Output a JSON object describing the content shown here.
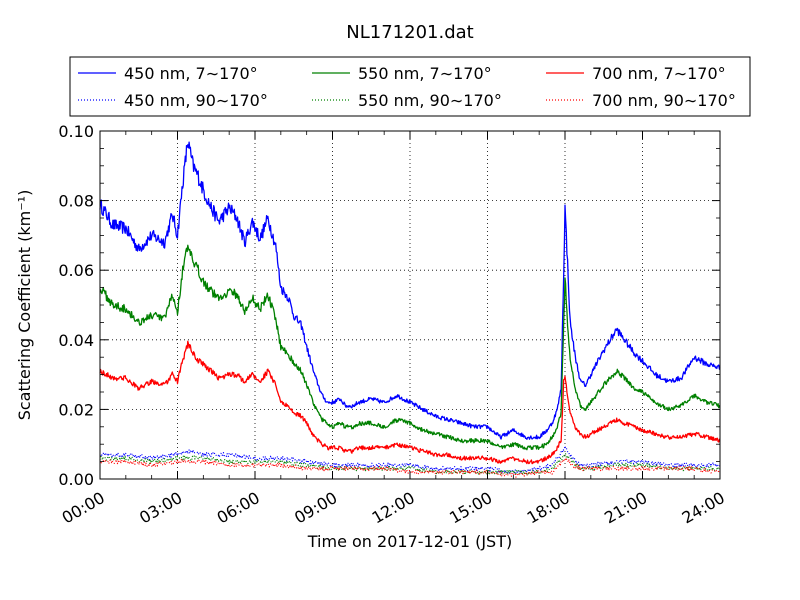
{
  "chart_data": {
    "type": "line",
    "title": "NL171201.dat",
    "xlabel": "Time on 2017-12-01 (JST)",
    "ylabel": "Scattering Coefficient (km⁻¹)",
    "xlim": [
      0,
      24
    ],
    "ylim": [
      0,
      0.1
    ],
    "x_tick_labels": [
      "00:00",
      "03:00",
      "06:00",
      "09:00",
      "12:00",
      "15:00",
      "18:00",
      "21:00",
      "24:00"
    ],
    "y_tick_labels": [
      "0.00",
      "0.02",
      "0.04",
      "0.06",
      "0.08",
      "0.10"
    ],
    "grid": true,
    "legend_placement": "top (above plot, 3 columns)",
    "x_unit": "hours",
    "series": [
      {
        "name": "450 nm, 7∼170°",
        "color": "#0000ff",
        "style": "solid",
        "x": [
          0,
          0.5,
          1,
          1.5,
          2,
          2.5,
          2.8,
          3,
          3.2,
          3.4,
          3.6,
          3.8,
          4,
          4.3,
          4.6,
          5,
          5.3,
          5.6,
          5.9,
          6.2,
          6.5,
          6.8,
          7,
          7.3,
          7.5,
          7.8,
          8,
          8.3,
          8.6,
          8.8,
          9,
          9.3,
          9.5,
          9.8,
          10,
          10.5,
          11,
          11.5,
          12,
          12.5,
          13,
          13.5,
          14,
          14.5,
          15,
          15.5,
          16,
          16.5,
          17,
          17.3,
          17.5,
          17.7,
          17.85,
          17.95,
          18,
          18.1,
          18.2,
          18.4,
          18.6,
          18.8,
          19,
          19.5,
          20,
          20.3,
          20.7,
          21,
          21.5,
          22,
          22.5,
          23,
          23.5,
          24
        ],
        "y": [
          0.079,
          0.073,
          0.072,
          0.066,
          0.07,
          0.068,
          0.076,
          0.07,
          0.085,
          0.097,
          0.09,
          0.087,
          0.083,
          0.078,
          0.074,
          0.078,
          0.075,
          0.068,
          0.074,
          0.069,
          0.075,
          0.067,
          0.055,
          0.052,
          0.047,
          0.044,
          0.038,
          0.03,
          0.024,
          0.022,
          0.022,
          0.023,
          0.021,
          0.021,
          0.022,
          0.023,
          0.022,
          0.024,
          0.022,
          0.02,
          0.018,
          0.017,
          0.016,
          0.015,
          0.015,
          0.012,
          0.014,
          0.012,
          0.012,
          0.014,
          0.016,
          0.02,
          0.026,
          0.06,
          0.078,
          0.062,
          0.045,
          0.035,
          0.028,
          0.027,
          0.03,
          0.037,
          0.043,
          0.04,
          0.036,
          0.034,
          0.03,
          0.028,
          0.029,
          0.035,
          0.033,
          0.032
        ]
      },
      {
        "name": "550 nm, 7∼170°",
        "color": "#008000",
        "style": "solid",
        "x": [
          0,
          0.5,
          1,
          1.5,
          2,
          2.5,
          2.8,
          3,
          3.2,
          3.4,
          3.6,
          3.8,
          4,
          4.3,
          4.6,
          5,
          5.3,
          5.6,
          5.9,
          6.2,
          6.5,
          6.8,
          7,
          7.3,
          7.5,
          7.8,
          8,
          8.3,
          8.6,
          8.8,
          9,
          9.3,
          9.5,
          9.8,
          10,
          10.5,
          11,
          11.5,
          12,
          12.5,
          13,
          13.5,
          14,
          14.5,
          15,
          15.5,
          16,
          16.5,
          17,
          17.3,
          17.5,
          17.7,
          17.85,
          17.95,
          18,
          18.1,
          18.2,
          18.4,
          18.6,
          18.8,
          19,
          19.5,
          20,
          20.3,
          20.7,
          21,
          21.5,
          22,
          22.5,
          23,
          23.5,
          24
        ],
        "y": [
          0.055,
          0.05,
          0.049,
          0.045,
          0.047,
          0.046,
          0.053,
          0.048,
          0.06,
          0.067,
          0.062,
          0.06,
          0.057,
          0.054,
          0.052,
          0.054,
          0.053,
          0.048,
          0.052,
          0.049,
          0.053,
          0.046,
          0.038,
          0.036,
          0.033,
          0.031,
          0.027,
          0.021,
          0.017,
          0.016,
          0.015,
          0.016,
          0.015,
          0.015,
          0.016,
          0.016,
          0.015,
          0.017,
          0.016,
          0.014,
          0.013,
          0.012,
          0.011,
          0.011,
          0.011,
          0.009,
          0.01,
          0.009,
          0.009,
          0.01,
          0.012,
          0.015,
          0.019,
          0.045,
          0.058,
          0.045,
          0.034,
          0.026,
          0.021,
          0.02,
          0.022,
          0.027,
          0.031,
          0.029,
          0.026,
          0.025,
          0.022,
          0.02,
          0.021,
          0.024,
          0.022,
          0.021
        ]
      },
      {
        "name": "700 nm, 7∼170°",
        "color": "#ff0000",
        "style": "solid",
        "x": [
          0,
          0.5,
          1,
          1.5,
          2,
          2.5,
          2.8,
          3,
          3.2,
          3.4,
          3.6,
          3.8,
          4,
          4.3,
          4.6,
          5,
          5.3,
          5.6,
          5.9,
          6.2,
          6.5,
          6.8,
          7,
          7.3,
          7.5,
          7.8,
          8,
          8.3,
          8.6,
          8.8,
          9,
          9.3,
          9.5,
          9.8,
          10,
          10.5,
          11,
          11.5,
          12,
          12.5,
          13,
          13.5,
          14,
          14.5,
          15,
          15.5,
          16,
          16.5,
          17,
          17.3,
          17.5,
          17.7,
          17.85,
          17.95,
          18,
          18.1,
          18.2,
          18.4,
          18.6,
          18.8,
          19,
          19.5,
          20,
          20.3,
          20.7,
          21,
          21.5,
          22,
          22.5,
          23,
          23.5,
          24
        ],
        "y": [
          0.031,
          0.029,
          0.029,
          0.026,
          0.028,
          0.027,
          0.03,
          0.028,
          0.034,
          0.039,
          0.036,
          0.034,
          0.033,
          0.031,
          0.029,
          0.03,
          0.03,
          0.028,
          0.03,
          0.028,
          0.031,
          0.027,
          0.022,
          0.021,
          0.019,
          0.018,
          0.016,
          0.012,
          0.01,
          0.009,
          0.009,
          0.009,
          0.008,
          0.008,
          0.009,
          0.009,
          0.009,
          0.01,
          0.009,
          0.008,
          0.007,
          0.007,
          0.006,
          0.006,
          0.006,
          0.005,
          0.006,
          0.005,
          0.005,
          0.006,
          0.007,
          0.009,
          0.011,
          0.028,
          0.03,
          0.024,
          0.019,
          0.015,
          0.013,
          0.012,
          0.013,
          0.015,
          0.017,
          0.016,
          0.015,
          0.014,
          0.013,
          0.012,
          0.012,
          0.013,
          0.012,
          0.011
        ]
      },
      {
        "name": "450 nm, 90∼170°",
        "color": "#0000ff",
        "style": "dotted",
        "x": [
          0,
          1,
          2,
          3,
          3.5,
          4,
          5,
          6,
          7,
          8,
          9,
          10,
          11,
          12,
          13,
          14,
          15,
          16,
          17,
          17.5,
          18,
          18.3,
          18.6,
          19,
          20,
          21,
          22,
          23,
          24
        ],
        "y": [
          0.007,
          0.007,
          0.006,
          0.007,
          0.008,
          0.007,
          0.007,
          0.006,
          0.006,
          0.005,
          0.004,
          0.004,
          0.004,
          0.004,
          0.003,
          0.003,
          0.003,
          0.002,
          0.003,
          0.004,
          0.009,
          0.006,
          0.004,
          0.004,
          0.005,
          0.005,
          0.004,
          0.004,
          0.004
        ]
      },
      {
        "name": "550 nm, 90∼170°",
        "color": "#008000",
        "style": "dotted",
        "x": [
          0,
          1,
          2,
          3,
          3.5,
          4,
          5,
          6,
          7,
          8,
          9,
          10,
          11,
          12,
          13,
          14,
          15,
          16,
          17,
          17.5,
          18,
          18.3,
          18.6,
          19,
          20,
          21,
          22,
          23,
          24
        ],
        "y": [
          0.006,
          0.006,
          0.005,
          0.006,
          0.006,
          0.006,
          0.005,
          0.005,
          0.005,
          0.004,
          0.003,
          0.003,
          0.003,
          0.003,
          0.002,
          0.002,
          0.002,
          0.002,
          0.002,
          0.003,
          0.007,
          0.005,
          0.003,
          0.003,
          0.004,
          0.004,
          0.003,
          0.003,
          0.003
        ]
      },
      {
        "name": "700 nm, 90∼170°",
        "color": "#ff0000",
        "style": "dotted",
        "x": [
          0,
          1,
          2,
          3,
          3.5,
          4,
          5,
          6,
          7,
          8,
          9,
          10,
          11,
          12,
          13,
          14,
          15,
          16,
          17,
          17.5,
          18,
          18.3,
          18.6,
          19,
          20,
          21,
          22,
          23,
          24
        ],
        "y": [
          0.005,
          0.005,
          0.004,
          0.005,
          0.005,
          0.005,
          0.004,
          0.004,
          0.004,
          0.003,
          0.003,
          0.003,
          0.003,
          0.002,
          0.002,
          0.002,
          0.002,
          0.001,
          0.002,
          0.002,
          0.006,
          0.004,
          0.003,
          0.003,
          0.003,
          0.003,
          0.003,
          0.003,
          0.002
        ]
      }
    ]
  }
}
